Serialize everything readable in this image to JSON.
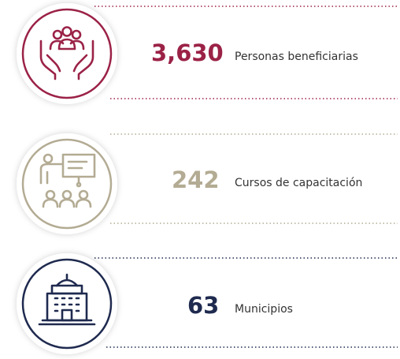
{
  "items": [
    {
      "number": "3,630",
      "label": "Personas beneficiarias"
    },
    {
      "number": "242",
      "label": "Cursos de capacitación"
    },
    {
      "number": "63",
      "label": "Municipios"
    }
  ]
}
